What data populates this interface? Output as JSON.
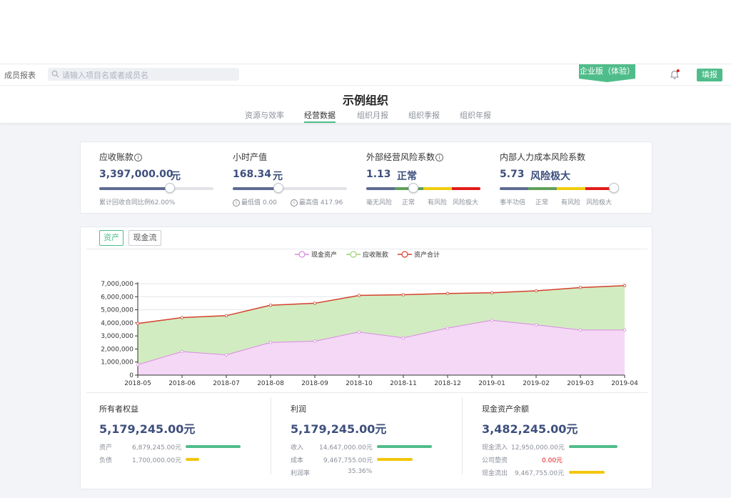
{
  "header": {
    "nav_label": "成员报表",
    "search_placeholder": "请输入项目名或者成员名",
    "edition_badge": "企业版（体验）",
    "fill_button": "填报",
    "colors": {
      "accent": "#4fbd8a",
      "badge": "#4fbd8a"
    }
  },
  "page": {
    "title": "示例组织",
    "tabs": [
      {
        "label": "资源与效率",
        "active": false
      },
      {
        "label": "经营数据",
        "active": true
      },
      {
        "label": "组织月报",
        "active": false
      },
      {
        "label": "组织季报",
        "active": false
      },
      {
        "label": "组织年报",
        "active": false
      }
    ]
  },
  "kpis": [
    {
      "title": "应收账款",
      "has_info": true,
      "value": "3,397,000.00",
      "unit": "元",
      "level": 0.62,
      "footnote": "累计回收合同比例62.00%"
    },
    {
      "title": "小时产值",
      "has_info": false,
      "value": "168.34",
      "unit": "元",
      "level": 0.4,
      "min_text": "最低值 0.00",
      "max_text": "最高值 417.96"
    },
    {
      "title": "外部经营风险系数",
      "has_info": true,
      "value": "1.13",
      "unit": "正常",
      "level": 0.41,
      "scale": [
        "毫无风险",
        "正常",
        "有风险",
        "风险极大"
      ]
    },
    {
      "title": "内部人力成本风险系数",
      "has_info": false,
      "value": "5.73",
      "unit": "风险极大",
      "level": 1.0,
      "scale": [
        "事半功倍",
        "正常",
        "有风险",
        "风险极大"
      ]
    }
  ],
  "risk_colors": [
    "#5e6b91",
    "#5fa05a",
    "#f2cc0c",
    "#e21b1b"
  ],
  "chart_panel": {
    "tabs": [
      {
        "label": "资产",
        "active": true
      },
      {
        "label": "现金流",
        "active": false
      }
    ]
  },
  "chart_data": {
    "type": "area",
    "categories": [
      "2018-05",
      "2018-06",
      "2018-07",
      "2018-08",
      "2018-09",
      "2018-10",
      "2018-11",
      "2018-12",
      "2019-01",
      "2019-02",
      "2019-03",
      "2019-04"
    ],
    "ylim": [
      0,
      7000000
    ],
    "yticks": [
      "0",
      "1,000,000",
      "2,000,000",
      "3,000,000",
      "4,000,000",
      "5,000,000",
      "6,000,000",
      "7,000,000"
    ],
    "legend_position": "top-center",
    "series": [
      {
        "name": "现金资产",
        "color": "#d98be0",
        "fill": "#f4d8f6",
        "values": [
          800000,
          1800000,
          1550000,
          2500000,
          2600000,
          3300000,
          2850000,
          3600000,
          4200000,
          3850000,
          3450000,
          3450000
        ]
      },
      {
        "name": "应收账款",
        "color": "#9fd27a",
        "fill": "#d2ecc1",
        "values": [
          3150000,
          2600000,
          3000000,
          2850000,
          2900000,
          2800000,
          3300000,
          2650000,
          2100000,
          2600000,
          3250000,
          3400000
        ]
      },
      {
        "name": "资产合计",
        "color": "#d6402e",
        "fill": "none",
        "values": [
          3950000,
          4400000,
          4550000,
          5350000,
          5500000,
          6100000,
          6150000,
          6250000,
          6300000,
          6450000,
          6700000,
          6850000
        ]
      }
    ]
  },
  "summaries": [
    {
      "title": "所有者权益",
      "value": "5,179,245.00元",
      "rows": [
        {
          "label": "资产",
          "value": "6,879,245.00元",
          "bar": 0.86,
          "bar_color": "#4fbd8a"
        },
        {
          "label": "负债",
          "value": "1,700,000.00元",
          "bar": 0.21,
          "bar_color": "#f2c60c"
        }
      ]
    },
    {
      "title": "利润",
      "value": "5,179,245.00元",
      "rows": [
        {
          "label": "收入",
          "value": "14,647,000.00元",
          "bar": 0.86,
          "bar_color": "#4fbd8a"
        },
        {
          "label": "成本",
          "value": "9,467,755.00元",
          "bar": 0.55,
          "bar_color": "#f2c60c"
        },
        {
          "label": "利润率",
          "value": "35.36%",
          "bar": 0,
          "bar_color": ""
        }
      ]
    },
    {
      "title": "现金资产余额",
      "value": "3,482,245.00元",
      "rows": [
        {
          "label": "现金流入",
          "value": "12,950,000.00元",
          "bar": 0.76,
          "bar_color": "#4fbd8a"
        },
        {
          "label": "公司垫资",
          "value": "0.00元",
          "bar": 0,
          "bar_color": "",
          "value_color": "#e21b1b"
        },
        {
          "label": "现金流出",
          "value": "9,467,755.00元",
          "bar": 0.56,
          "bar_color": "#f2c60c"
        }
      ]
    }
  ]
}
